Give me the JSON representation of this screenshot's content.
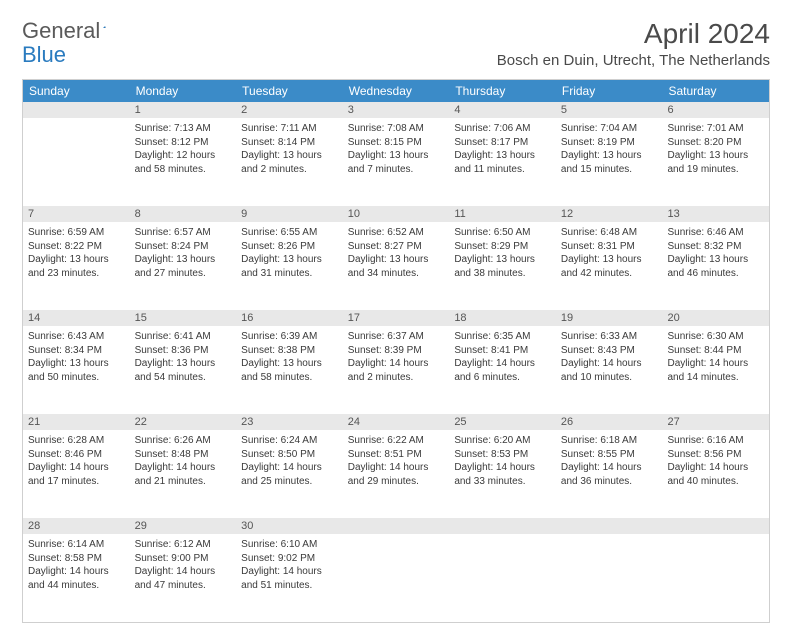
{
  "logo": {
    "word1": "General",
    "word2": "Blue"
  },
  "title": "April 2024",
  "location": "Bosch en Duin, Utrecht, The Netherlands",
  "colors": {
    "header_bg": "#3b8bc8",
    "header_text": "#ffffff",
    "daynum_bg": "#e8e8e8",
    "border": "#cfcfcf",
    "text": "#3a3a3a"
  },
  "dayHeaders": [
    "Sunday",
    "Monday",
    "Tuesday",
    "Wednesday",
    "Thursday",
    "Friday",
    "Saturday"
  ],
  "weeks": [
    {
      "nums": [
        "",
        "1",
        "2",
        "3",
        "4",
        "5",
        "6"
      ],
      "cells": [
        null,
        {
          "sunrise": "7:13 AM",
          "sunset": "8:12 PM",
          "daylight": "12 hours and 58 minutes."
        },
        {
          "sunrise": "7:11 AM",
          "sunset": "8:14 PM",
          "daylight": "13 hours and 2 minutes."
        },
        {
          "sunrise": "7:08 AM",
          "sunset": "8:15 PM",
          "daylight": "13 hours and 7 minutes."
        },
        {
          "sunrise": "7:06 AM",
          "sunset": "8:17 PM",
          "daylight": "13 hours and 11 minutes."
        },
        {
          "sunrise": "7:04 AM",
          "sunset": "8:19 PM",
          "daylight": "13 hours and 15 minutes."
        },
        {
          "sunrise": "7:01 AM",
          "sunset": "8:20 PM",
          "daylight": "13 hours and 19 minutes."
        }
      ]
    },
    {
      "nums": [
        "7",
        "8",
        "9",
        "10",
        "11",
        "12",
        "13"
      ],
      "cells": [
        {
          "sunrise": "6:59 AM",
          "sunset": "8:22 PM",
          "daylight": "13 hours and 23 minutes."
        },
        {
          "sunrise": "6:57 AM",
          "sunset": "8:24 PM",
          "daylight": "13 hours and 27 minutes."
        },
        {
          "sunrise": "6:55 AM",
          "sunset": "8:26 PM",
          "daylight": "13 hours and 31 minutes."
        },
        {
          "sunrise": "6:52 AM",
          "sunset": "8:27 PM",
          "daylight": "13 hours and 34 minutes."
        },
        {
          "sunrise": "6:50 AM",
          "sunset": "8:29 PM",
          "daylight": "13 hours and 38 minutes."
        },
        {
          "sunrise": "6:48 AM",
          "sunset": "8:31 PM",
          "daylight": "13 hours and 42 minutes."
        },
        {
          "sunrise": "6:46 AM",
          "sunset": "8:32 PM",
          "daylight": "13 hours and 46 minutes."
        }
      ]
    },
    {
      "nums": [
        "14",
        "15",
        "16",
        "17",
        "18",
        "19",
        "20"
      ],
      "cells": [
        {
          "sunrise": "6:43 AM",
          "sunset": "8:34 PM",
          "daylight": "13 hours and 50 minutes."
        },
        {
          "sunrise": "6:41 AM",
          "sunset": "8:36 PM",
          "daylight": "13 hours and 54 minutes."
        },
        {
          "sunrise": "6:39 AM",
          "sunset": "8:38 PM",
          "daylight": "13 hours and 58 minutes."
        },
        {
          "sunrise": "6:37 AM",
          "sunset": "8:39 PM",
          "daylight": "14 hours and 2 minutes."
        },
        {
          "sunrise": "6:35 AM",
          "sunset": "8:41 PM",
          "daylight": "14 hours and 6 minutes."
        },
        {
          "sunrise": "6:33 AM",
          "sunset": "8:43 PM",
          "daylight": "14 hours and 10 minutes."
        },
        {
          "sunrise": "6:30 AM",
          "sunset": "8:44 PM",
          "daylight": "14 hours and 14 minutes."
        }
      ]
    },
    {
      "nums": [
        "21",
        "22",
        "23",
        "24",
        "25",
        "26",
        "27"
      ],
      "cells": [
        {
          "sunrise": "6:28 AM",
          "sunset": "8:46 PM",
          "daylight": "14 hours and 17 minutes."
        },
        {
          "sunrise": "6:26 AM",
          "sunset": "8:48 PM",
          "daylight": "14 hours and 21 minutes."
        },
        {
          "sunrise": "6:24 AM",
          "sunset": "8:50 PM",
          "daylight": "14 hours and 25 minutes."
        },
        {
          "sunrise": "6:22 AM",
          "sunset": "8:51 PM",
          "daylight": "14 hours and 29 minutes."
        },
        {
          "sunrise": "6:20 AM",
          "sunset": "8:53 PM",
          "daylight": "14 hours and 33 minutes."
        },
        {
          "sunrise": "6:18 AM",
          "sunset": "8:55 PM",
          "daylight": "14 hours and 36 minutes."
        },
        {
          "sunrise": "6:16 AM",
          "sunset": "8:56 PM",
          "daylight": "14 hours and 40 minutes."
        }
      ]
    },
    {
      "nums": [
        "28",
        "29",
        "30",
        "",
        "",
        "",
        ""
      ],
      "cells": [
        {
          "sunrise": "6:14 AM",
          "sunset": "8:58 PM",
          "daylight": "14 hours and 44 minutes."
        },
        {
          "sunrise": "6:12 AM",
          "sunset": "9:00 PM",
          "daylight": "14 hours and 47 minutes."
        },
        {
          "sunrise": "6:10 AM",
          "sunset": "9:02 PM",
          "daylight": "14 hours and 51 minutes."
        },
        null,
        null,
        null,
        null
      ]
    }
  ],
  "labels": {
    "sunrise": "Sunrise: ",
    "sunset": "Sunset: ",
    "daylight": "Daylight: "
  }
}
